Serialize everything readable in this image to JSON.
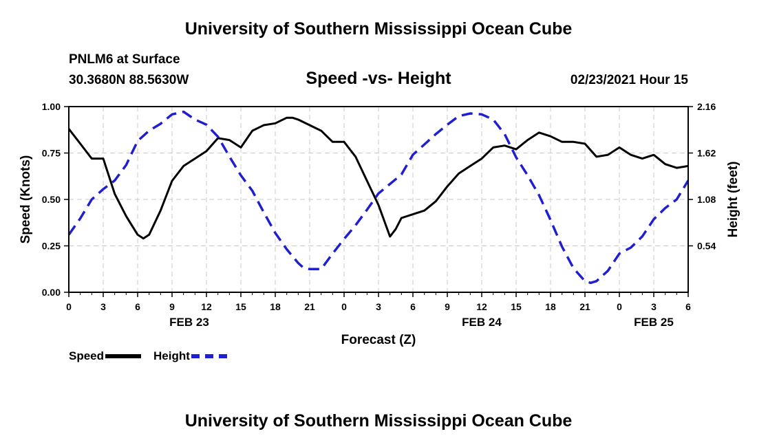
{
  "header": {
    "top_title": "University of Southern Mississippi Ocean Cube",
    "station": "PNLM6 at Surface",
    "coords": "30.3680N 88.5630W",
    "chart_title": "Speed -vs- Height",
    "datetime": "02/23/2021 Hour 15",
    "bottom_title": "University of Southern Mississippi Ocean Cube"
  },
  "legend": {
    "speed_label": "Speed",
    "height_label": "Height"
  },
  "colors": {
    "speed": "#000000",
    "height": "#1f1fd0",
    "grid": "#c8c8c8"
  },
  "chart_data": {
    "type": "line",
    "title": "Speed -vs- Height",
    "xlabel": "Forecast (Z)",
    "ylabel": "Speed (Knots)",
    "y2label": "Height (feet)",
    "xlim": [
      0,
      54
    ],
    "ylim": [
      0,
      1
    ],
    "y2lim": [
      0,
      2.16
    ],
    "x_ticks": [
      0,
      3,
      6,
      9,
      12,
      15,
      18,
      21,
      24,
      27,
      30,
      33,
      36,
      39,
      42,
      45,
      48,
      51,
      54
    ],
    "x_tick_labels": [
      "0",
      "3",
      "6",
      "9",
      "12",
      "15",
      "18",
      "21",
      "0",
      "3",
      "6",
      "9",
      "12",
      "15",
      "18",
      "21",
      "0",
      "3",
      "6"
    ],
    "y_ticks": [
      0,
      0.25,
      0.5,
      0.75,
      1.0
    ],
    "y_tick_labels": [
      "0.00",
      "0.25",
      "0.50",
      "0.75",
      "1.00"
    ],
    "y2_ticks": [
      0.54,
      1.08,
      1.62,
      2.16
    ],
    "y2_tick_labels": [
      "0.54",
      "1.08",
      "1.62",
      "2.16"
    ],
    "day_labels": [
      {
        "x": 10.5,
        "label": "FEB 23"
      },
      {
        "x": 36,
        "label": "FEB 24"
      },
      {
        "x": 51,
        "label": "FEB 25"
      }
    ],
    "grid": true,
    "series": [
      {
        "name": "Speed",
        "axis": "left",
        "x": [
          0,
          1,
          2,
          2.5,
          3,
          4,
          5,
          6,
          6.5,
          7,
          8,
          9,
          10,
          11,
          12,
          13,
          14,
          15,
          16,
          17,
          18,
          19,
          19.5,
          20,
          21,
          22,
          23,
          24,
          25,
          26,
          27,
          28,
          28.5,
          29,
          30,
          31,
          32,
          33,
          34,
          35,
          36,
          37,
          38,
          39,
          40,
          41,
          42,
          43,
          44,
          45,
          46,
          47,
          48,
          49,
          50,
          51,
          52,
          53,
          54
        ],
        "values": [
          0.88,
          0.8,
          0.72,
          0.72,
          0.72,
          0.53,
          0.41,
          0.31,
          0.29,
          0.31,
          0.44,
          0.6,
          0.68,
          0.72,
          0.76,
          0.83,
          0.82,
          0.78,
          0.87,
          0.9,
          0.91,
          0.94,
          0.94,
          0.93,
          0.9,
          0.87,
          0.81,
          0.81,
          0.73,
          0.6,
          0.47,
          0.3,
          0.34,
          0.4,
          0.42,
          0.44,
          0.49,
          0.57,
          0.64,
          0.68,
          0.72,
          0.78,
          0.79,
          0.77,
          0.82,
          0.86,
          0.84,
          0.81,
          0.81,
          0.8,
          0.73,
          0.74,
          0.78,
          0.74,
          0.72,
          0.74,
          0.69,
          0.67,
          0.68
        ]
      },
      {
        "name": "Height",
        "axis": "right",
        "x": [
          0,
          1,
          2,
          3,
          4,
          5,
          6,
          7,
          8,
          9,
          10,
          11,
          12,
          13,
          14,
          15,
          16,
          17,
          18,
          19,
          20,
          20.5,
          21,
          22,
          23,
          24,
          25,
          26,
          27,
          28,
          29,
          30,
          31,
          32,
          33,
          34,
          35,
          36,
          37,
          38,
          39,
          40,
          41,
          42,
          43,
          44,
          45,
          45.5,
          46,
          47,
          48,
          49,
          50,
          51,
          52,
          53,
          54
        ],
        "values": [
          0.67,
          0.86,
          1.08,
          1.2,
          1.3,
          1.48,
          1.76,
          1.88,
          1.96,
          2.07,
          2.1,
          2.01,
          1.95,
          1.81,
          1.58,
          1.36,
          1.18,
          0.93,
          0.69,
          0.5,
          0.34,
          0.28,
          0.27,
          0.27,
          0.45,
          0.62,
          0.78,
          0.96,
          1.15,
          1.26,
          1.37,
          1.6,
          1.72,
          1.84,
          1.95,
          2.05,
          2.08,
          2.07,
          2.01,
          1.84,
          1.57,
          1.36,
          1.13,
          0.84,
          0.53,
          0.28,
          0.13,
          0.11,
          0.13,
          0.25,
          0.45,
          0.52,
          0.65,
          0.85,
          0.98,
          1.08,
          1.3
        ]
      }
    ]
  }
}
